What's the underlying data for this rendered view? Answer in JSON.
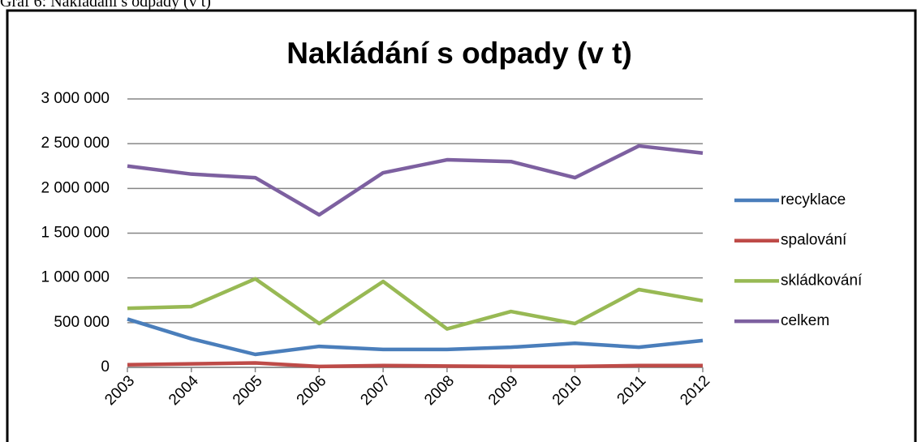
{
  "caption": "Graf 6: Nakládání s odpady (v t)",
  "chart_data": {
    "type": "line",
    "title": "Nakládání s odpady (v t)",
    "categories": [
      "2003",
      "2004",
      "2005",
      "2006",
      "2007",
      "2008",
      "2009",
      "2010",
      "2011",
      "2012"
    ],
    "series": [
      {
        "name": "recyklace",
        "color": "#4a7ebb",
        "values": [
          540000,
          320000,
          145000,
          235000,
          200000,
          200000,
          225000,
          270000,
          225000,
          300000
        ]
      },
      {
        "name": "spalování",
        "color": "#be4b48",
        "values": [
          30000,
          40000,
          50000,
          10000,
          20000,
          15000,
          10000,
          10000,
          20000,
          20000
        ]
      },
      {
        "name": "skládkování",
        "color": "#98b954",
        "values": [
          660000,
          680000,
          990000,
          490000,
          960000,
          430000,
          625000,
          490000,
          870000,
          745000
        ]
      },
      {
        "name": "celkem",
        "color": "#7d60a0",
        "values": [
          2250000,
          2160000,
          2120000,
          1705000,
          2175000,
          2320000,
          2300000,
          2120000,
          2475000,
          2395000
        ]
      }
    ],
    "ylim": [
      0,
      3000000
    ],
    "yticks": [
      0,
      {
        "value": 500000,
        "label": "500 000"
      },
      {
        "value": 1000000,
        "label": "1 000 000"
      },
      {
        "value": 1500000,
        "label": "1 500 000"
      },
      {
        "value": 2000000,
        "label": "2 000 000"
      },
      {
        "value": 2500000,
        "label": "2 500 000"
      },
      {
        "value": 3000000,
        "label": "3 000 000"
      }
    ],
    "grid": true,
    "legend": "right"
  }
}
